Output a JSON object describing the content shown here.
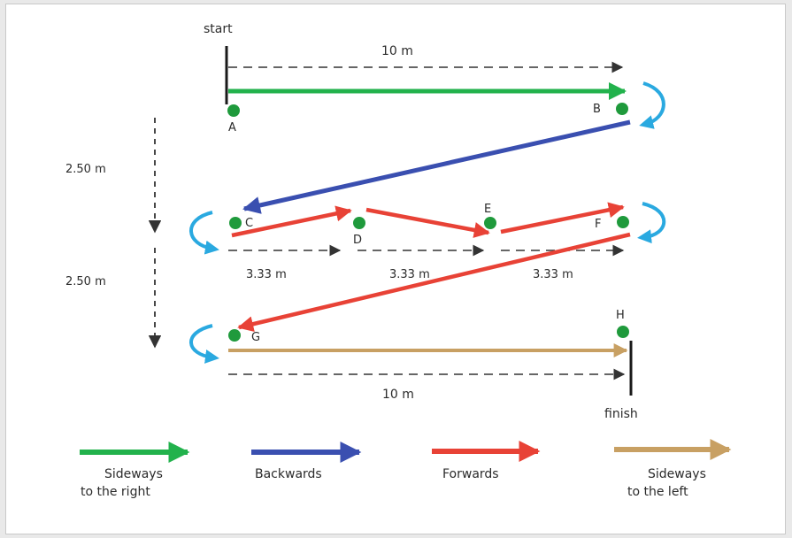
{
  "labels": {
    "start": "start",
    "finish": "finish",
    "top_distance": "10 m",
    "bottom_distance": "10 m",
    "gap_1": "2.50 m",
    "gap_2": "2.50 m",
    "seg_1": "3.33 m",
    "seg_2": "3.33 m",
    "seg_3": "3.33 m"
  },
  "cones": {
    "a": "A",
    "b": "B",
    "c": "C",
    "d": "D",
    "e": "E",
    "f": "F",
    "g": "G",
    "h": "H"
  },
  "legend": {
    "right_1": "Sideways",
    "right_2": "to the right",
    "backwards": "Backwards",
    "forwards": "Forwards",
    "left_1": "Sideways",
    "left_2": "to the left"
  },
  "colors": {
    "sideways_right": "#22b24c",
    "backwards": "#3a4fb0",
    "forwards": "#e84236",
    "sideways_left": "#c8a063",
    "turn": "#2aa9e0",
    "cone": "#1f9a3c",
    "dashed": "#333333"
  }
}
